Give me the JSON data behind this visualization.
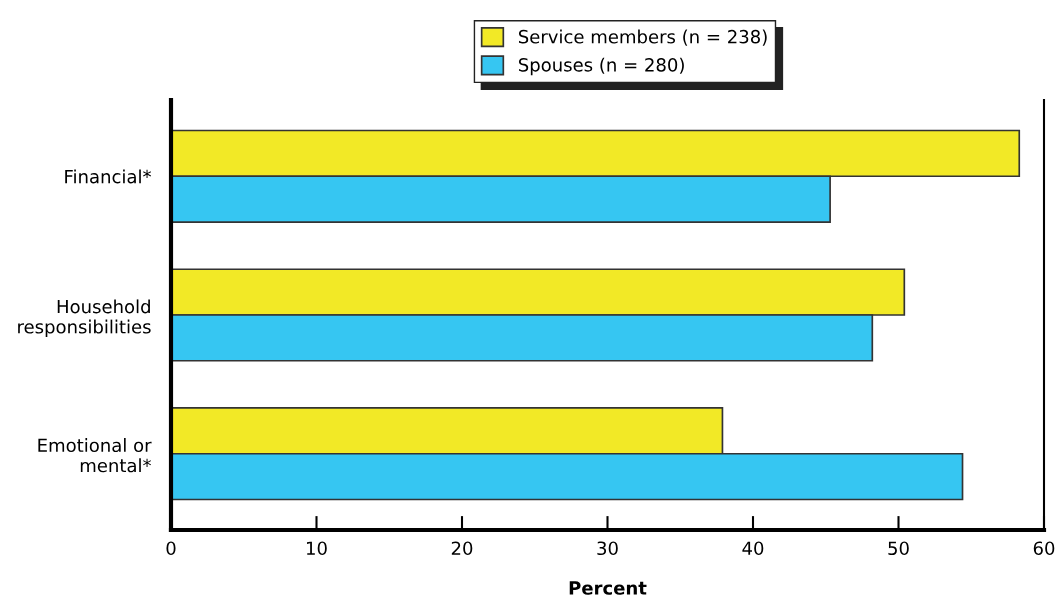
{
  "chart_data": {
    "type": "bar",
    "orientation": "horizontal",
    "xlabel": "Percent",
    "categories": [
      "Financial*",
      "Household\nresponsibilities",
      "Emotional or\nmental*"
    ],
    "series": [
      {
        "name": "Service members (n = 238)",
        "color": "#f2e926",
        "values": [
          58.3,
          50.4,
          37.9
        ]
      },
      {
        "name": "Spouses (n = 280)",
        "color": "#36c6f2",
        "values": [
          45.3,
          48.2,
          54.4
        ]
      }
    ],
    "xlim": [
      0,
      60
    ],
    "xticks": [
      0,
      10,
      20,
      30,
      40,
      50,
      60
    ],
    "grid": false,
    "legend": "top"
  }
}
